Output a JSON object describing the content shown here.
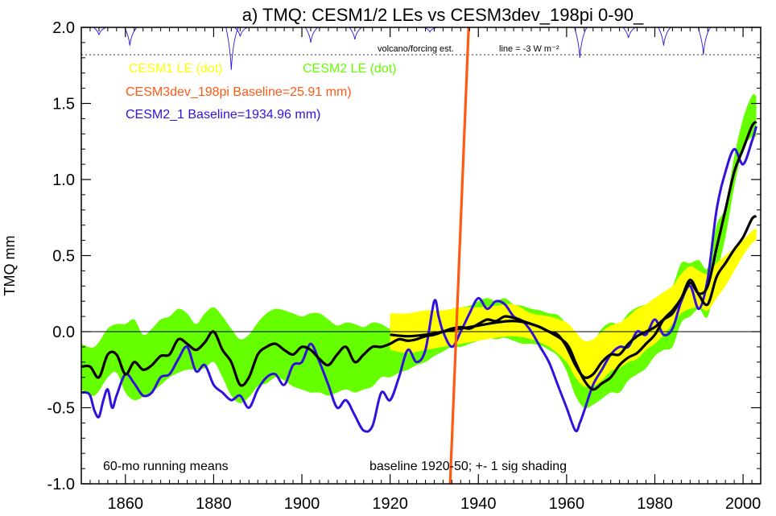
{
  "chart_data": {
    "type": "line",
    "title": "a) TMQ: CESM1/2 LEs vs CESM3dev_198pi 0-90_",
    "ylabel": "TMQ mm",
    "xlabel": "",
    "xlim": [
      1850,
      2004
    ],
    "ylim": [
      -1.0,
      2.0
    ],
    "x_ticks": [
      1860,
      1880,
      1900,
      1920,
      1940,
      1960,
      1980,
      2000
    ],
    "y_ticks": [
      -1.0,
      -0.5,
      0.0,
      0.5,
      1.0,
      1.5,
      2.0
    ],
    "y_tick_labels": [
      "-1.0",
      "-0.5",
      "0.0",
      "0.5",
      "1.0",
      "1.5",
      "2.0"
    ],
    "zero_line": 0.0,
    "legend": [
      {
        "label": "CESM1 LE (dot)",
        "color": "#ffff00"
      },
      {
        "label": "CESM2 LE (dot)",
        "color": "#66ff00"
      },
      {
        "label": "CESM3dev_198pi Baseline=25.91 mm)",
        "color": "#ff5a14"
      },
      {
        "label": "CESM2_1 Baseline=1934.96 mm)",
        "color": "#3311dd"
      }
    ],
    "annotations": {
      "volcano": "volcano/forcing est.",
      "volcano_scale": "line = -3 W m⁻²",
      "running_means": "60-mo running means",
      "baseline_note": "baseline 1920-50; +- 1 sig shading"
    },
    "volcano_baseline": 1.82,
    "volcano_dips": [
      {
        "year": 1854,
        "depth": 0.05
      },
      {
        "year": 1861,
        "depth": 0.12
      },
      {
        "year": 1884,
        "depth": 0.28
      },
      {
        "year": 1886,
        "depth": 0.06
      },
      {
        "year": 1902,
        "depth": 0.1
      },
      {
        "year": 1912,
        "depth": 0.08
      },
      {
        "year": 1929,
        "depth": 0.03
      },
      {
        "year": 1963,
        "depth": 0.2
      },
      {
        "year": 1974,
        "depth": 0.07
      },
      {
        "year": 1982,
        "depth": 0.12
      },
      {
        "year": 1991,
        "depth": 0.18
      }
    ],
    "series": [
      {
        "name": "CESM2 LE (dot) +-1 sig band",
        "color": "#66ff00",
        "x": [
          1850,
          1853,
          1856,
          1858,
          1860,
          1862,
          1864,
          1866,
          1868,
          1870,
          1872,
          1874,
          1876,
          1878,
          1880,
          1882,
          1884,
          1886,
          1888,
          1890,
          1892,
          1894,
          1896,
          1898,
          1900,
          1902,
          1904,
          1906,
          1908,
          1910,
          1912,
          1914,
          1916,
          1918,
          1920,
          1922,
          1924,
          1926,
          1928,
          1930,
          1932,
          1934,
          1936,
          1938,
          1940,
          1942,
          1944,
          1946,
          1948,
          1950,
          1952,
          1954,
          1956,
          1958,
          1960,
          1962,
          1964,
          1966,
          1968,
          1970,
          1972,
          1974,
          1976,
          1978,
          1980,
          1982,
          1984,
          1986,
          1988,
          1990,
          1992,
          1994,
          1996,
          1998,
          2000,
          2002,
          2003
        ],
        "upper": [
          -0.08,
          -0.1,
          0.02,
          0.05,
          0.05,
          0.08,
          -0.02,
          0.02,
          0.08,
          0.1,
          0.15,
          0.12,
          0.05,
          0.12,
          0.16,
          0.1,
          0.02,
          -0.05,
          -0.02,
          0.06,
          0.12,
          0.15,
          0.14,
          0.12,
          0.1,
          0.12,
          0.12,
          0.08,
          0.04,
          0.06,
          0.05,
          0.03,
          0.06,
          0.05,
          0.02,
          0.05,
          0.07,
          0.06,
          0.08,
          0.12,
          0.14,
          0.14,
          0.16,
          0.17,
          0.2,
          0.22,
          0.2,
          0.22,
          0.18,
          0.17,
          0.15,
          0.14,
          0.12,
          0.11,
          0.05,
          -0.02,
          -0.08,
          -0.07,
          0.02,
          0.06,
          0.05,
          0.12,
          0.16,
          0.18,
          0.22,
          0.26,
          0.3,
          0.45,
          0.45,
          0.47,
          0.42,
          0.7,
          0.82,
          1.15,
          1.4,
          1.55,
          1.55
        ],
        "lower": [
          -0.38,
          -0.42,
          -0.3,
          -0.27,
          -0.4,
          -0.45,
          -0.43,
          -0.4,
          -0.35,
          -0.3,
          -0.27,
          -0.25,
          -0.25,
          -0.24,
          -0.2,
          -0.3,
          -0.42,
          -0.47,
          -0.43,
          -0.36,
          -0.34,
          -0.3,
          -0.32,
          -0.36,
          -0.38,
          -0.4,
          -0.4,
          -0.42,
          -0.4,
          -0.38,
          -0.4,
          -0.38,
          -0.36,
          -0.3,
          -0.3,
          -0.27,
          -0.25,
          -0.22,
          -0.2,
          -0.16,
          -0.13,
          -0.1,
          -0.1,
          -0.08,
          -0.06,
          -0.04,
          -0.05,
          -0.04,
          -0.06,
          -0.08,
          -0.08,
          -0.09,
          -0.12,
          -0.16,
          -0.26,
          -0.42,
          -0.5,
          -0.48,
          -0.44,
          -0.4,
          -0.4,
          -0.32,
          -0.28,
          -0.24,
          -0.16,
          -0.12,
          -0.1,
          0.06,
          0.1,
          0.15,
          0.1,
          0.38,
          0.62,
          0.95,
          1.2,
          1.28,
          1.28
        ]
      },
      {
        "name": "CESM1 LE (dot) +-1 sig band",
        "color": "#ffff00",
        "x": [
          1920,
          1924,
          1928,
          1932,
          1936,
          1940,
          1944,
          1948,
          1952,
          1956,
          1960,
          1962,
          1964,
          1966,
          1968,
          1970,
          1972,
          1974,
          1976,
          1978,
          1980,
          1982,
          1984,
          1986,
          1988,
          1990,
          1992,
          1994,
          1996,
          1998,
          2000,
          2002,
          2003
        ],
        "upper": [
          0.12,
          0.12,
          0.14,
          0.14,
          0.16,
          0.16,
          0.17,
          0.18,
          0.12,
          0.1,
          0.06,
          0.0,
          -0.06,
          -0.05,
          0.0,
          0.04,
          0.06,
          0.1,
          0.15,
          0.18,
          0.22,
          0.26,
          0.3,
          0.38,
          0.43,
          0.4,
          0.38,
          0.45,
          0.5,
          0.55,
          0.6,
          0.66,
          0.68
        ],
        "lower": [
          -0.12,
          -0.14,
          -0.12,
          -0.1,
          -0.08,
          -0.06,
          -0.04,
          -0.03,
          -0.05,
          -0.1,
          -0.2,
          -0.3,
          -0.36,
          -0.36,
          -0.32,
          -0.26,
          -0.24,
          -0.2,
          -0.18,
          -0.12,
          -0.08,
          -0.02,
          0.05,
          0.12,
          0.15,
          0.16,
          0.14,
          0.22,
          0.3,
          0.4,
          0.5,
          0.58,
          0.6
        ]
      },
      {
        "name": "CESM2 LE (dot) ensemble mean",
        "color": "#000000",
        "x": [
          1850,
          1852,
          1854,
          1856,
          1858,
          1860,
          1862,
          1864,
          1866,
          1868,
          1870,
          1872,
          1874,
          1876,
          1878,
          1880,
          1882,
          1884,
          1886,
          1888,
          1890,
          1892,
          1894,
          1896,
          1898,
          1900,
          1902,
          1904,
          1906,
          1908,
          1910,
          1912,
          1914,
          1916,
          1918,
          1920,
          1922,
          1924,
          1926,
          1928,
          1930,
          1932,
          1934,
          1936,
          1938,
          1940,
          1942,
          1944,
          1946,
          1948,
          1950,
          1952,
          1954,
          1956,
          1958,
          1960,
          1962,
          1964,
          1966,
          1968,
          1970,
          1972,
          1974,
          1976,
          1978,
          1980,
          1982,
          1984,
          1986,
          1988,
          1990,
          1992,
          1994,
          1996,
          1998,
          2000,
          2002,
          2003
        ],
        "values": [
          -0.23,
          -0.23,
          -0.3,
          -0.15,
          -0.15,
          -0.28,
          -0.2,
          -0.25,
          -0.22,
          -0.16,
          -0.15,
          -0.05,
          -0.08,
          -0.12,
          -0.07,
          0.0,
          -0.12,
          -0.2,
          -0.35,
          -0.3,
          -0.15,
          -0.1,
          -0.08,
          -0.12,
          -0.15,
          -0.1,
          -0.12,
          -0.18,
          -0.22,
          -0.15,
          -0.1,
          -0.2,
          -0.15,
          -0.1,
          -0.1,
          -0.08,
          -0.05,
          -0.06,
          -0.05,
          -0.03,
          -0.02,
          0.0,
          0.02,
          0.03,
          0.02,
          0.05,
          0.08,
          0.07,
          0.1,
          0.09,
          0.07,
          0.05,
          0.03,
          0.0,
          -0.02,
          -0.1,
          -0.22,
          -0.3,
          -0.28,
          -0.2,
          -0.15,
          -0.15,
          -0.08,
          -0.03,
          0.0,
          0.03,
          0.08,
          0.12,
          0.22,
          0.32,
          0.25,
          0.3,
          0.55,
          0.8,
          1.05,
          1.2,
          1.35,
          1.38
        ]
      },
      {
        "name": "CESM1 LE (dot) ensemble mean",
        "color": "#000000",
        "x": [
          1920,
          1924,
          1928,
          1932,
          1936,
          1940,
          1944,
          1948,
          1952,
          1956,
          1960,
          1962,
          1964,
          1966,
          1968,
          1970,
          1972,
          1974,
          1976,
          1978,
          1980,
          1982,
          1984,
          1986,
          1988,
          1990,
          1992,
          1994,
          1996,
          1998,
          2000,
          2002,
          2003
        ],
        "values": [
          -0.02,
          -0.03,
          -0.02,
          0.0,
          0.02,
          0.04,
          0.06,
          0.07,
          0.05,
          0.0,
          -0.08,
          -0.2,
          -0.32,
          -0.38,
          -0.34,
          -0.3,
          -0.22,
          -0.17,
          -0.14,
          -0.08,
          -0.02,
          0.08,
          0.14,
          0.22,
          0.34,
          0.24,
          0.18,
          0.36,
          0.45,
          0.54,
          0.62,
          0.74,
          0.76
        ]
      },
      {
        "name": "CESM2_1 Baseline=1934.96 mm)",
        "color": "#3311dd",
        "x": [
          1850,
          1851,
          1852,
          1853,
          1854,
          1855,
          1856,
          1857,
          1858,
          1860,
          1862,
          1864,
          1866,
          1868,
          1870,
          1872,
          1874,
          1876,
          1878,
          1880,
          1882,
          1884,
          1886,
          1888,
          1890,
          1892,
          1894,
          1896,
          1898,
          1900,
          1902,
          1904,
          1906,
          1908,
          1910,
          1912,
          1914,
          1916,
          1918,
          1920,
          1922,
          1924,
          1926,
          1928,
          1930,
          1931,
          1932,
          1934,
          1936,
          1938,
          1940,
          1942,
          1944,
          1946,
          1948,
          1950,
          1952,
          1954,
          1956,
          1958,
          1960,
          1962,
          1963,
          1964,
          1966,
          1968,
          1970,
          1972,
          1974,
          1976,
          1978,
          1980,
          1982,
          1984,
          1986,
          1988,
          1990,
          1992,
          1994,
          1996,
          1998,
          2000,
          2002,
          2003
        ],
        "values": [
          -0.4,
          -0.4,
          -0.42,
          -0.52,
          -0.56,
          -0.45,
          -0.38,
          -0.5,
          -0.42,
          -0.28,
          -0.34,
          -0.42,
          -0.4,
          -0.3,
          -0.28,
          -0.18,
          -0.1,
          -0.26,
          -0.22,
          -0.35,
          -0.4,
          -0.45,
          -0.42,
          -0.5,
          -0.38,
          -0.3,
          -0.28,
          -0.35,
          -0.22,
          -0.2,
          -0.08,
          -0.2,
          -0.35,
          -0.5,
          -0.45,
          -0.55,
          -0.65,
          -0.62,
          -0.4,
          -0.45,
          -0.3,
          -0.12,
          -0.2,
          -0.12,
          0.2,
          0.1,
          0.0,
          -0.1,
          0.0,
          0.12,
          0.22,
          0.15,
          0.2,
          0.18,
          0.1,
          0.07,
          0.0,
          -0.1,
          -0.2,
          -0.35,
          -0.5,
          -0.65,
          -0.6,
          -0.52,
          -0.35,
          -0.25,
          -0.15,
          -0.1,
          -0.1,
          0.0,
          -0.02,
          0.08,
          -0.02,
          0.02,
          0.2,
          0.3,
          0.15,
          0.35,
          0.8,
          1.05,
          1.2,
          1.1,
          1.25,
          1.35
        ]
      }
    ],
    "orange_line": {
      "name": "CESM3dev_198pi Baseline=25.91 mm)",
      "color": "#ff5a14",
      "x": [
        1933.6,
        1937.8
      ],
      "y": [
        -1.0,
        2.0
      ]
    }
  }
}
